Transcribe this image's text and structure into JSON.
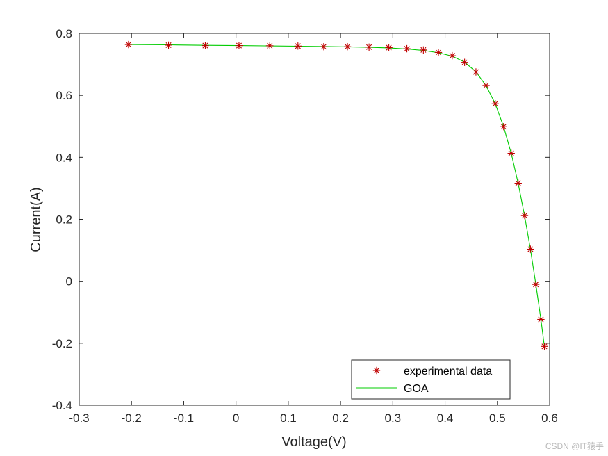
{
  "chart_data": {
    "type": "line",
    "title": "",
    "xlabel": "Voltage(V)",
    "ylabel": "Current(A)",
    "xlim": [
      -0.3,
      0.6
    ],
    "ylim": [
      -0.4,
      0.8
    ],
    "xticks": [
      -0.3,
      -0.2,
      -0.1,
      0,
      0.1,
      0.2,
      0.3,
      0.4,
      0.5,
      0.6
    ],
    "xtick_labels": [
      "-0.3",
      "-0.2",
      "-0.1",
      "0",
      "0.1",
      "0.2",
      "0.3",
      "0.4",
      "0.5",
      "0.6"
    ],
    "yticks": [
      -0.4,
      -0.2,
      0,
      0.2,
      0.4,
      0.6,
      0.8
    ],
    "ytick_labels": [
      "-0.4",
      "-0.2",
      "0",
      "0.2",
      "0.4",
      "0.6",
      "0.8"
    ],
    "grid": false,
    "legend_position": "bottom-right",
    "series": [
      {
        "name": "experimental data",
        "style": "markers",
        "marker": "asterisk",
        "color": "#c00000",
        "x": [
          -0.2057,
          -0.1291,
          -0.0588,
          0.0057,
          0.0646,
          0.1185,
          0.1678,
          0.2132,
          0.2545,
          0.2924,
          0.3269,
          0.3585,
          0.3873,
          0.4137,
          0.4373,
          0.459,
          0.4784,
          0.496,
          0.5119,
          0.5265,
          0.5398,
          0.5521,
          0.5633,
          0.5736,
          0.5833,
          0.59
        ],
        "y": [
          0.764,
          0.762,
          0.7605,
          0.7605,
          0.76,
          0.759,
          0.757,
          0.757,
          0.7555,
          0.754,
          0.7505,
          0.7465,
          0.7385,
          0.728,
          0.7065,
          0.6755,
          0.632,
          0.573,
          0.499,
          0.413,
          0.3165,
          0.212,
          0.1035,
          -0.01,
          -0.123,
          -0.21
        ]
      },
      {
        "name": "GOA",
        "style": "line",
        "color": "#00cc00",
        "x": [
          -0.2057,
          -0.1291,
          -0.0588,
          0.0057,
          0.0646,
          0.1185,
          0.1678,
          0.2132,
          0.2545,
          0.2924,
          0.3269,
          0.3585,
          0.3873,
          0.4137,
          0.4373,
          0.459,
          0.4784,
          0.496,
          0.5119,
          0.5265,
          0.5398,
          0.5521,
          0.5633,
          0.5736,
          0.5833,
          0.59
        ],
        "y": [
          0.764,
          0.763,
          0.7615,
          0.7605,
          0.7595,
          0.7585,
          0.7575,
          0.7565,
          0.755,
          0.753,
          0.7495,
          0.745,
          0.7375,
          0.7265,
          0.7075,
          0.676,
          0.631,
          0.573,
          0.499,
          0.413,
          0.316,
          0.211,
          0.103,
          -0.01,
          -0.123,
          -0.211
        ]
      }
    ]
  },
  "watermark": "CSDN @IT猿手"
}
